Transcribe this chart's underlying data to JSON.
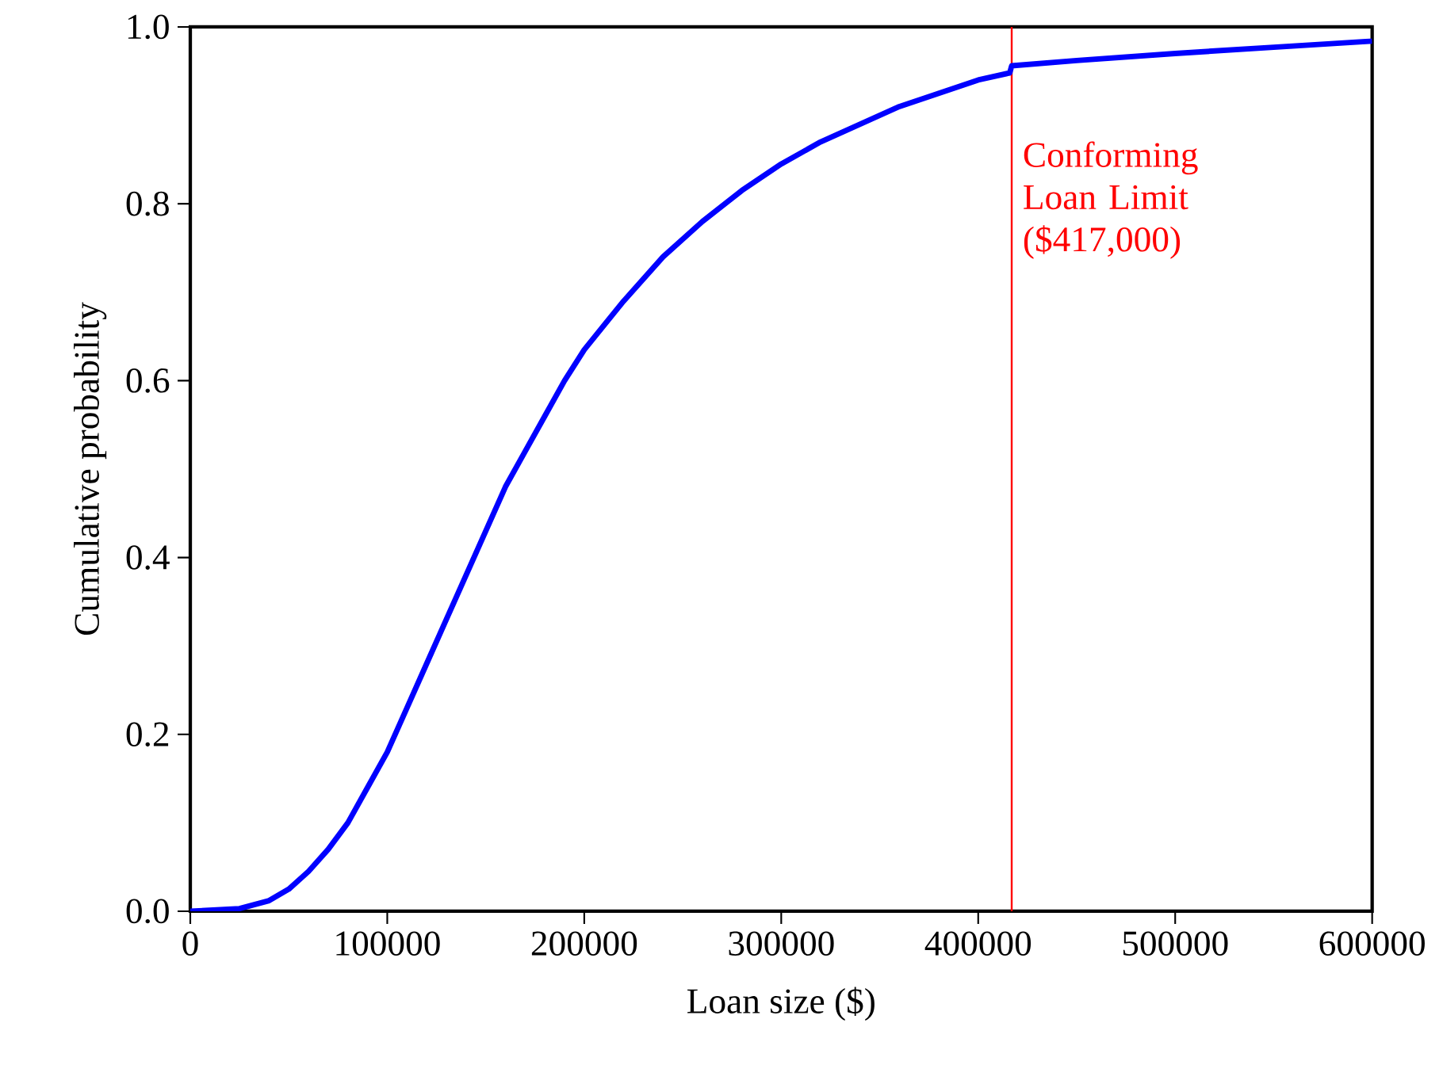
{
  "chart_data": {
    "type": "line",
    "xlabel": "Loan size ($)",
    "ylabel": "Cumulative probability",
    "x": [
      0,
      25000,
      40000,
      50000,
      60000,
      70000,
      80000,
      90000,
      100000,
      110000,
      120000,
      130000,
      140000,
      150000,
      160000,
      170000,
      180000,
      190000,
      200000,
      220000,
      240000,
      260000,
      280000,
      300000,
      320000,
      340000,
      360000,
      380000,
      400000,
      416000,
      417000,
      450000,
      500000,
      550000,
      600000
    ],
    "series": [
      {
        "color": "#0000ff",
        "values": [
          0.0,
          0.003,
          0.012,
          0.025,
          0.045,
          0.07,
          0.1,
          0.14,
          0.18,
          0.23,
          0.28,
          0.33,
          0.38,
          0.43,
          0.48,
          0.52,
          0.56,
          0.6,
          0.635,
          0.69,
          0.74,
          0.78,
          0.815,
          0.845,
          0.87,
          0.89,
          0.91,
          0.925,
          0.94,
          0.948,
          0.956,
          0.962,
          0.97,
          0.977,
          0.984
        ]
      }
    ],
    "xlim": [
      0,
      600000
    ],
    "ylim": [
      0,
      1
    ],
    "xticks": [
      0,
      100000,
      200000,
      300000,
      400000,
      500000,
      600000
    ],
    "yticks": [
      {
        "value": 0,
        "label": "0.0"
      },
      {
        "value": 0.2,
        "label": "0.2"
      },
      {
        "value": 0.4,
        "label": "0.4"
      },
      {
        "value": 0.6,
        "label": "0.6"
      },
      {
        "value": 0.8,
        "label": "0.8"
      },
      {
        "value": 1,
        "label": "1.0"
      }
    ],
    "ref_lines": [
      {
        "axis": "x",
        "value": 417000,
        "label": "Conforming Loan Limit ($417,000)",
        "color": "#ff0000"
      }
    ],
    "marker": "none",
    "line_style": "solid"
  }
}
